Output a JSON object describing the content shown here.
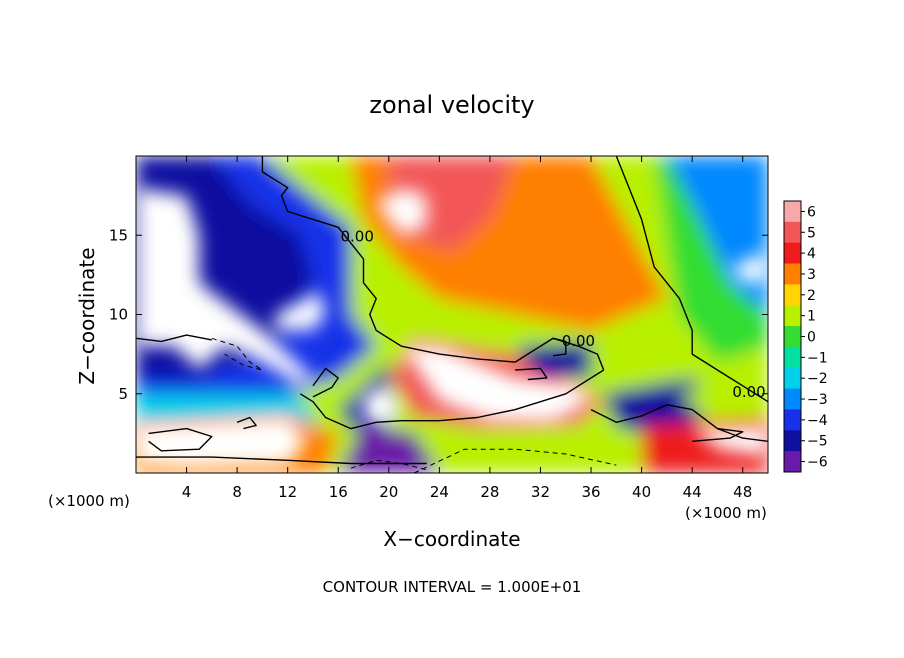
{
  "chart_data": {
    "type": "heatmap",
    "title": "zonal velocity",
    "xlabel": "X−coordinate",
    "ylabel": "Z−coordinate",
    "x_unit_left": "(×1000 m)",
    "x_unit_right": "(×1000 m)",
    "footer": "CONTOUR INTERVAL = 1.000E+01",
    "xlim": [
      0,
      50
    ],
    "ylim": [
      0,
      20
    ],
    "x_ticks": [
      4,
      8,
      12,
      16,
      20,
      24,
      28,
      32,
      36,
      40,
      44,
      48
    ],
    "y_ticks": [
      5,
      10,
      15
    ],
    "colorbar": {
      "range": [
        -6,
        6
      ],
      "levels": [
        {
          "label": "6",
          "color": "#f7a8a8"
        },
        {
          "label": "5",
          "color": "#f25656"
        },
        {
          "label": "4",
          "color": "#ee1c1c"
        },
        {
          "label": "3",
          "color": "#ff7f00"
        },
        {
          "label": "2",
          "color": "#ffd400"
        },
        {
          "label": "1",
          "color": "#b8f000"
        },
        {
          "label": "0",
          "color": "#33dd33"
        },
        {
          "label": "−1",
          "color": "#00e0a0"
        },
        {
          "label": "−2",
          "color": "#00d0e8"
        },
        {
          "label": "−3",
          "color": "#0088ff"
        },
        {
          "label": "−4",
          "color": "#1830e8"
        },
        {
          "label": "−5",
          "color": "#1010a0"
        },
        {
          "label": "−6",
          "color": "#6a1aa8"
        }
      ]
    },
    "contour_labels": [
      {
        "text": "0.00",
        "x": 17.5,
        "y": 14.6
      },
      {
        "text": "0.00",
        "x": 35.0,
        "y": 8.0
      },
      {
        "text": "0.00",
        "x": 48.5,
        "y": 4.8
      }
    ],
    "regions": [
      {
        "value": 1.0,
        "points": [
          [
            0,
            20
          ],
          [
            50,
            20
          ],
          [
            50,
            0
          ],
          [
            0,
            0
          ]
        ]
      },
      {
        "value": -3.5,
        "points": [
          [
            0,
            20
          ],
          [
            10,
            20
          ],
          [
            13,
            18
          ],
          [
            17,
            15.5
          ],
          [
            17,
            11
          ],
          [
            19,
            8
          ],
          [
            16,
            6
          ],
          [
            12,
            5
          ],
          [
            6,
            4.5
          ],
          [
            0,
            4.5
          ]
        ]
      },
      {
        "value": -5.0,
        "points": [
          [
            0,
            20
          ],
          [
            6,
            20
          ],
          [
            9,
            17
          ],
          [
            13,
            15
          ],
          [
            14,
            12
          ],
          [
            11,
            8
          ],
          [
            5,
            6
          ],
          [
            0,
            6
          ]
        ]
      },
      {
        "value": -2.0,
        "points": [
          [
            0,
            5
          ],
          [
            13,
            5
          ],
          [
            15,
            2
          ],
          [
            13,
            0
          ],
          [
            0,
            0
          ]
        ]
      },
      {
        "value": 3.5,
        "points": [
          [
            17,
            20
          ],
          [
            38,
            20
          ],
          [
            40,
            15
          ],
          [
            42,
            11
          ],
          [
            36,
            9
          ],
          [
            30,
            10
          ],
          [
            24,
            11
          ],
          [
            21,
            13
          ],
          [
            18,
            16
          ]
        ]
      },
      {
        "value": 5.0,
        "points": [
          [
            20,
            20
          ],
          [
            30,
            20
          ],
          [
            28,
            16
          ],
          [
            25,
            14
          ],
          [
            21,
            15
          ],
          [
            20,
            17
          ]
        ]
      },
      {
        "value": 1.5,
        "points": [
          [
            36,
            20
          ],
          [
            42,
            20
          ],
          [
            44,
            15
          ],
          [
            42,
            11
          ],
          [
            40,
            14
          ]
        ]
      },
      {
        "value": 0.5,
        "points": [
          [
            41,
            20
          ],
          [
            50,
            20
          ],
          [
            50,
            8
          ],
          [
            46,
            7
          ],
          [
            43,
            10
          ],
          [
            42,
            15
          ]
        ]
      },
      {
        "value": -3.0,
        "points": [
          [
            42,
            20
          ],
          [
            50,
            20
          ],
          [
            50,
            10
          ],
          [
            47,
            12
          ],
          [
            44,
            17
          ]
        ]
      },
      {
        "value": 1.0,
        "points": [
          [
            17,
            13
          ],
          [
            21,
            13
          ],
          [
            24,
            11
          ],
          [
            27,
            9
          ],
          [
            19,
            8
          ],
          [
            17,
            10
          ]
        ]
      },
      {
        "value": 5.0,
        "points": [
          [
            20,
            6
          ],
          [
            22,
            8.5
          ],
          [
            30,
            7.5
          ],
          [
            37,
            4.5
          ],
          [
            35,
            3
          ],
          [
            27,
            2.8
          ],
          [
            22,
            3.5
          ]
        ]
      },
      {
        "value": -4.5,
        "points": [
          [
            16,
            4
          ],
          [
            20,
            7
          ],
          [
            20,
            3
          ],
          [
            18,
            2
          ]
        ]
      },
      {
        "value": -5.0,
        "points": [
          [
            30,
            8
          ],
          [
            36,
            8.2
          ],
          [
            36,
            6
          ],
          [
            32,
            6
          ]
        ]
      },
      {
        "value": 1.0,
        "points": [
          [
            14,
            2.5
          ],
          [
            24,
            2.2
          ],
          [
            36,
            1.8
          ],
          [
            40,
            0
          ],
          [
            14,
            0
          ]
        ]
      },
      {
        "value": -5.5,
        "points": [
          [
            18,
            3
          ],
          [
            22,
            2.5
          ],
          [
            24,
            0
          ],
          [
            16,
            0
          ]
        ]
      },
      {
        "value": 3.5,
        "points": [
          [
            0,
            3
          ],
          [
            12,
            3.5
          ],
          [
            16,
            2.5
          ],
          [
            15,
            0
          ],
          [
            0,
            0
          ]
        ]
      },
      {
        "value": -4.5,
        "points": [
          [
            37,
            5
          ],
          [
            44,
            6
          ],
          [
            46,
            4
          ],
          [
            42,
            2
          ],
          [
            38,
            3
          ]
        ]
      },
      {
        "value": 4.5,
        "points": [
          [
            40,
            3
          ],
          [
            50,
            3.5
          ],
          [
            50,
            0
          ],
          [
            40,
            0
          ]
        ]
      },
      {
        "value": 1.5,
        "points": [
          [
            43,
            5
          ],
          [
            50,
            6
          ],
          [
            50,
            4
          ],
          [
            45,
            3.5
          ]
        ]
      }
    ],
    "white_regions": [
      {
        "points": [
          [
            0,
            18
          ],
          [
            4,
            17.5
          ],
          [
            5,
            15
          ],
          [
            5,
            12
          ],
          [
            10,
            9
          ],
          [
            14,
            6
          ],
          [
            13,
            5.5
          ],
          [
            10,
            7
          ],
          [
            7,
            8
          ],
          [
            5,
            6.5
          ],
          [
            3,
            8
          ],
          [
            0,
            8
          ]
        ]
      },
      {
        "points": [
          [
            11,
            10
          ],
          [
            13,
            10.8
          ],
          [
            14.5,
            11.5
          ],
          [
            15,
            10
          ],
          [
            14,
            9
          ],
          [
            11,
            9
          ]
        ]
      },
      {
        "points": [
          [
            19,
            17
          ],
          [
            21,
            18
          ],
          [
            23,
            17.5
          ],
          [
            23,
            15.5
          ],
          [
            21,
            15
          ]
        ]
      },
      {
        "points": [
          [
            21,
            8
          ],
          [
            24,
            8
          ],
          [
            30,
            6
          ],
          [
            35,
            5.5
          ],
          [
            36,
            4.5
          ],
          [
            33,
            3.2
          ],
          [
            28,
            3.3
          ],
          [
            24,
            4.5
          ]
        ]
      },
      {
        "points": [
          [
            0,
            3
          ],
          [
            6,
            3.2
          ],
          [
            12,
            3.5
          ],
          [
            13.5,
            2
          ],
          [
            12,
            0.5
          ],
          [
            4,
            0.3
          ],
          [
            0,
            0.5
          ]
        ]
      },
      {
        "points": [
          [
            18,
            5
          ],
          [
            20,
            5.5
          ],
          [
            21,
            4
          ],
          [
            20,
            3
          ],
          [
            18,
            3.3
          ]
        ]
      },
      {
        "points": [
          [
            47,
            13
          ],
          [
            50,
            14
          ],
          [
            50,
            12
          ],
          [
            48,
            12
          ]
        ]
      },
      {
        "points": [
          [
            44,
            2.8
          ],
          [
            50,
            3
          ],
          [
            50,
            1
          ],
          [
            46,
            1.5
          ]
        ]
      }
    ],
    "zero_contours": [
      [
        [
          0,
          8.5
        ],
        [
          2,
          8.3
        ],
        [
          4,
          8.7
        ],
        [
          6,
          8.4
        ]
      ],
      [
        [
          10,
          20
        ],
        [
          10,
          19
        ],
        [
          11,
          18.5
        ],
        [
          12,
          18
        ],
        [
          11.5,
          17.5
        ],
        [
          12,
          16.5
        ],
        [
          14,
          16
        ],
        [
          16,
          15.5
        ],
        [
          17,
          14.5
        ],
        [
          18,
          13.5
        ],
        [
          18,
          12
        ],
        [
          19,
          11
        ],
        [
          18.5,
          10
        ],
        [
          19,
          9
        ],
        [
          21,
          8
        ],
        [
          24,
          7.5
        ],
        [
          27,
          7.2
        ],
        [
          30,
          7
        ]
      ],
      [
        [
          30,
          7
        ],
        [
          31,
          7.5
        ],
        [
          32,
          8
        ],
        [
          33,
          8.5
        ],
        [
          35,
          8
        ],
        [
          36.5,
          7.5
        ],
        [
          37,
          6.5
        ]
      ],
      [
        [
          37,
          6.5
        ],
        [
          34,
          5
        ],
        [
          30,
          4
        ],
        [
          27,
          3.5
        ],
        [
          24,
          3.3
        ],
        [
          21,
          3.3
        ],
        [
          19,
          3.2
        ],
        [
          17,
          2.8
        ],
        [
          15,
          3.5
        ],
        [
          14,
          4.5
        ],
        [
          13,
          5
        ]
      ],
      [
        [
          14,
          4.8
        ],
        [
          15.5,
          5.4
        ],
        [
          16,
          6
        ],
        [
          15,
          6.6
        ],
        [
          14,
          5.5
        ]
      ],
      [
        [
          38,
          20
        ],
        [
          39,
          18
        ],
        [
          40,
          16
        ],
        [
          41,
          13
        ],
        [
          43,
          11
        ],
        [
          44,
          9
        ],
        [
          44,
          7.5
        ],
        [
          46,
          6.5
        ],
        [
          48,
          5.5
        ],
        [
          50,
          4.5
        ]
      ],
      [
        [
          32,
          8
        ],
        [
          33,
          8.5
        ],
        [
          34,
          8.3
        ],
        [
          34,
          7.5
        ],
        [
          33,
          7.4
        ]
      ],
      [
        [
          36,
          4
        ],
        [
          38,
          3.2
        ],
        [
          40,
          3.6
        ],
        [
          42,
          4.3
        ],
        [
          44,
          4
        ],
        [
          46,
          2.8
        ],
        [
          48,
          2.2
        ],
        [
          50,
          2
        ]
      ],
      [
        [
          1,
          2.5
        ],
        [
          4,
          2.8
        ],
        [
          6,
          2.3
        ],
        [
          5,
          1.5
        ],
        [
          2,
          1.4
        ],
        [
          1,
          2
        ]
      ],
      [
        [
          30,
          6.5
        ],
        [
          32,
          6.6
        ],
        [
          32.5,
          6
        ],
        [
          31,
          5.9
        ]
      ],
      [
        [
          8,
          3.2
        ],
        [
          9,
          3.5
        ],
        [
          9.5,
          3
        ],
        [
          8.5,
          2.8
        ]
      ],
      [
        [
          44,
          2
        ],
        [
          47,
          2.2
        ],
        [
          48,
          2.6
        ],
        [
          46,
          2.8
        ]
      ],
      [
        [
          0,
          1
        ],
        [
          6,
          1
        ],
        [
          12,
          0.8
        ],
        [
          17,
          0.6
        ],
        [
          23,
          0.6
        ]
      ]
    ],
    "negative_contours": [
      [
        [
          6,
          8.5
        ],
        [
          8,
          8
        ],
        [
          9,
          7
        ],
        [
          10,
          6.5
        ],
        [
          8.5,
          6.8
        ],
        [
          7,
          7.5
        ]
      ],
      [
        [
          22,
          0
        ],
        [
          26,
          1.5
        ],
        [
          30,
          1.5
        ],
        [
          34,
          1.2
        ],
        [
          38,
          0.5
        ]
      ],
      [
        [
          17,
          0.3
        ],
        [
          19,
          0.8
        ],
        [
          21,
          0.6
        ],
        [
          23,
          0.2
        ]
      ]
    ]
  }
}
